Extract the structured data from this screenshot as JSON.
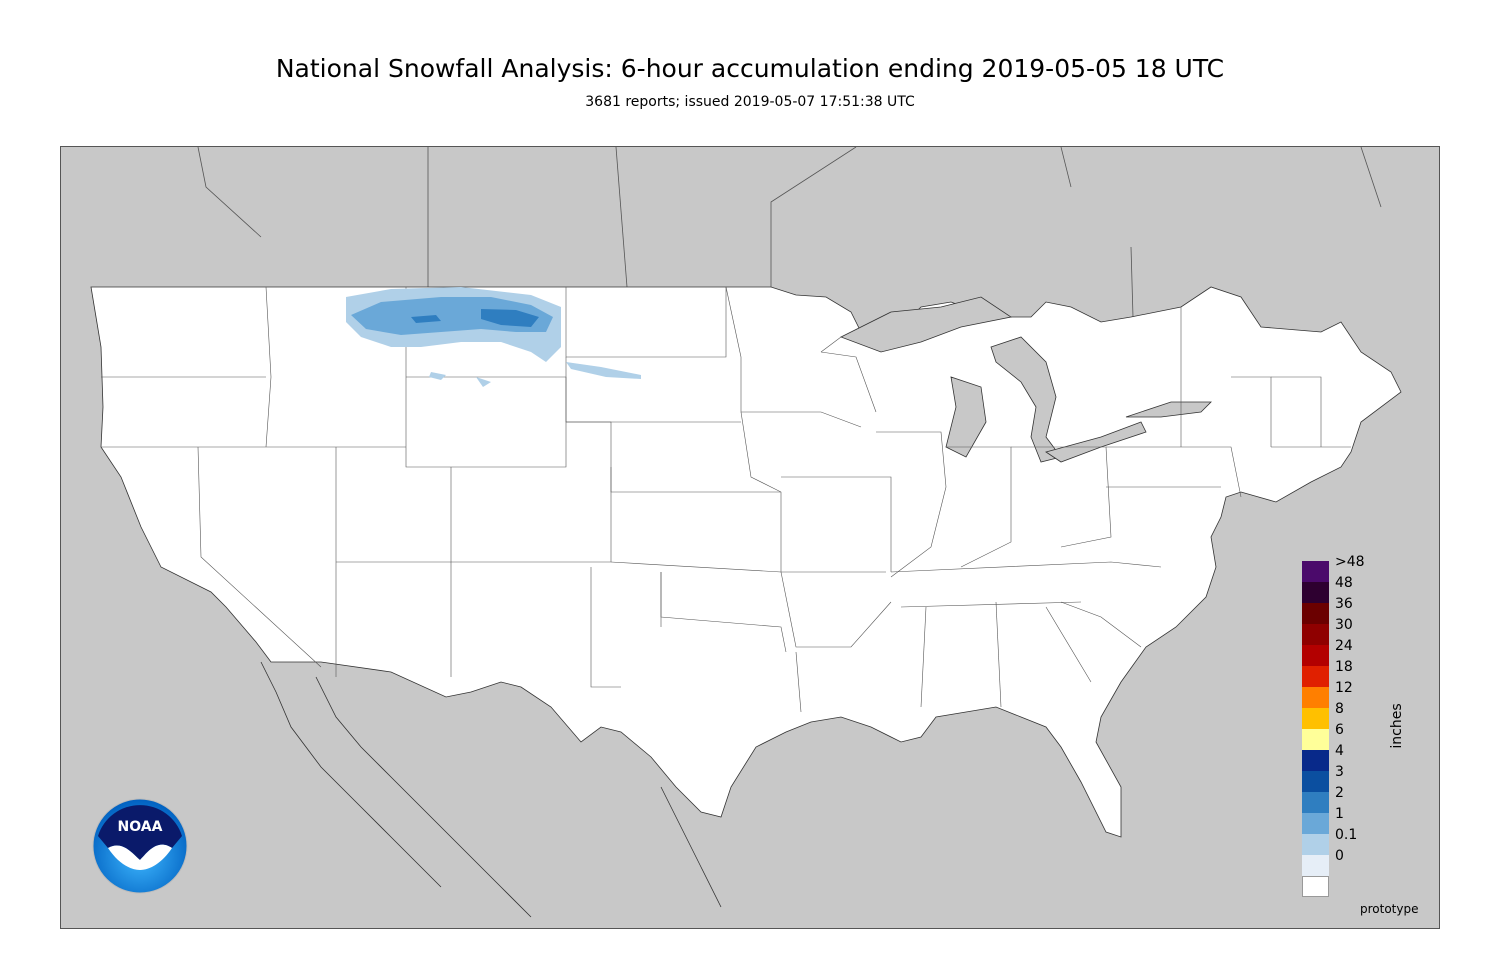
{
  "title": "National Snowfall Analysis: 6-hour accumulation ending 2019-05-05 18 UTC",
  "subtitle": "3681 reports; issued 2019-05-07 17:51:38 UTC",
  "legend": {
    "unit": "inches",
    "labels": [
      ">48",
      "48",
      "36",
      "30",
      "24",
      "18",
      "12",
      "8",
      "6",
      "4",
      "3",
      "2",
      "1",
      "0.1",
      "0"
    ],
    "colors": [
      "#4b0a6b",
      "#2e0030",
      "#6b0000",
      "#8f0000",
      "#b30000",
      "#e02000",
      "#ff7f00",
      "#ffc000",
      "#ffff99",
      "#08298a",
      "#0b4fa0",
      "#2f7ec0",
      "#6aa8d8",
      "#b0d0e8",
      "#e6eef7",
      "#ffffff"
    ]
  },
  "watermark": "prototype",
  "logo_text": "NOAA",
  "colors": {
    "land": "#ffffff",
    "outside": "#c8c8c8",
    "water": "#c8c8c8"
  }
}
